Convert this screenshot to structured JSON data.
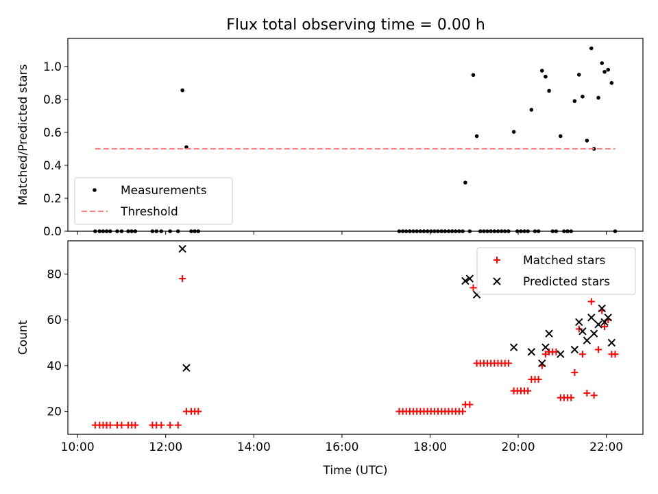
{
  "title": "Flux total observing time = 0.00 h",
  "chart_data": [
    {
      "type": "scatter",
      "ylabel": "Matched/Predicted stars",
      "xlabel": "",
      "xlim": [
        9.78,
        22.83
      ],
      "ylim": [
        0.0,
        1.17
      ],
      "xticks": [
        10,
        12,
        14,
        16,
        18,
        20,
        22
      ],
      "xtick_labels": [
        "",
        "",
        "",
        "",
        "",
        "",
        ""
      ],
      "yticks": [
        0.0,
        0.2,
        0.4,
        0.6,
        0.8,
        1.0
      ],
      "ytick_labels": [
        "0.0",
        "0.2",
        "0.4",
        "0.6",
        "0.8",
        "1.0"
      ],
      "legend_position": "lower-left",
      "series": [
        {
          "name": "Measurements",
          "marker": "dot",
          "color": "#000000",
          "x": [
            10.4,
            10.5,
            10.58,
            10.66,
            10.74,
            10.9,
            11.0,
            11.15,
            11.23,
            11.31,
            11.7,
            11.79,
            11.9,
            12.1,
            12.28,
            12.38,
            12.47,
            12.58,
            12.66,
            12.74,
            17.3,
            17.38,
            17.46,
            17.54,
            17.62,
            17.7,
            17.78,
            17.86,
            17.94,
            18.02,
            18.1,
            18.18,
            18.26,
            18.34,
            18.42,
            18.5,
            18.58,
            18.66,
            18.74,
            18.8,
            18.9,
            18.98,
            19.06,
            19.14,
            19.22,
            19.3,
            19.38,
            19.46,
            19.54,
            19.62,
            19.7,
            19.78,
            19.9,
            19.98,
            20.06,
            20.14,
            20.22,
            20.3,
            20.38,
            20.46,
            20.54,
            20.62,
            20.7,
            20.78,
            20.86,
            20.96,
            21.04,
            21.12,
            21.2,
            21.28,
            21.38,
            21.46,
            21.56,
            21.66,
            21.72,
            21.82,
            21.9,
            21.96,
            22.04,
            22.12,
            22.2
          ],
          "y": [
            0.0,
            0.0,
            0.0,
            0.0,
            0.0,
            0.0,
            0.0,
            0.0,
            0.0,
            0.0,
            0.0,
            0.0,
            0.0,
            0.0,
            0.0,
            0.855,
            0.51,
            0.0,
            0.0,
            0.0,
            0.0,
            0.0,
            0.0,
            0.0,
            0.0,
            0.0,
            0.0,
            0.0,
            0.0,
            0.0,
            0.0,
            0.0,
            0.0,
            0.0,
            0.0,
            0.0,
            0.0,
            0.0,
            0.0,
            0.295,
            0.0,
            0.948,
            0.577,
            0.0,
            0.0,
            0.0,
            0.0,
            0.0,
            0.0,
            0.0,
            0.0,
            0.0,
            0.603,
            0.0,
            0.0,
            0.0,
            0.0,
            0.737,
            0.0,
            0.0,
            0.974,
            0.938,
            0.852,
            0.0,
            0.0,
            0.577,
            0.0,
            0.0,
            0.0,
            0.79,
            0.95,
            0.817,
            0.55,
            1.11,
            0.5,
            0.81,
            1.02,
            0.967,
            0.98,
            0.9,
            0.0
          ]
        },
        {
          "name": "Threshold",
          "marker": "dashed-line",
          "color": "#ff7f7f",
          "x": [
            10.4,
            22.2
          ],
          "y": [
            0.5,
            0.5
          ]
        }
      ]
    },
    {
      "type": "scatter",
      "ylabel": "Count",
      "xlabel": "Time (UTC)",
      "xlim": [
        9.78,
        22.83
      ],
      "ylim": [
        10.0,
        94.5
      ],
      "xticks": [
        10,
        12,
        14,
        16,
        18,
        20,
        22
      ],
      "xtick_labels": [
        "10:00",
        "12:00",
        "14:00",
        "16:00",
        "18:00",
        "20:00",
        "22:00"
      ],
      "yticks": [
        20,
        40,
        60,
        80
      ],
      "ytick_labels": [
        "20",
        "40",
        "60",
        "80"
      ],
      "legend_position": "upper-right",
      "series": [
        {
          "name": "Matched stars",
          "marker": "plus",
          "color": "#ff0000",
          "x": [
            10.4,
            10.5,
            10.58,
            10.66,
            10.74,
            10.9,
            11.0,
            11.15,
            11.23,
            11.31,
            11.7,
            11.79,
            11.9,
            12.1,
            12.28,
            12.38,
            12.47,
            12.58,
            12.66,
            12.74,
            17.3,
            17.38,
            17.46,
            17.54,
            17.62,
            17.7,
            17.78,
            17.86,
            17.94,
            18.02,
            18.1,
            18.18,
            18.26,
            18.34,
            18.42,
            18.5,
            18.58,
            18.66,
            18.74,
            18.8,
            18.9,
            18.98,
            19.06,
            19.14,
            19.22,
            19.3,
            19.38,
            19.46,
            19.54,
            19.62,
            19.7,
            19.78,
            19.9,
            19.98,
            20.06,
            20.14,
            20.22,
            20.3,
            20.38,
            20.46,
            20.54,
            20.62,
            20.7,
            20.78,
            20.86,
            20.96,
            21.04,
            21.12,
            21.2,
            21.28,
            21.38,
            21.46,
            21.56,
            21.66,
            21.72,
            21.82,
            21.9,
            21.96,
            22.04,
            22.12,
            22.2
          ],
          "y": [
            14,
            14,
            14,
            14,
            14,
            14,
            14,
            14,
            14,
            14,
            14,
            14,
            14,
            14,
            14,
            78,
            20,
            20,
            20,
            20,
            20,
            20,
            20,
            20,
            20,
            20,
            20,
            20,
            20,
            20,
            20,
            20,
            20,
            20,
            20,
            20,
            20,
            20,
            20,
            23,
            23,
            74,
            41,
            41,
            41,
            41,
            41,
            41,
            41,
            41,
            41,
            41,
            29,
            29,
            29,
            29,
            29,
            34,
            34,
            34,
            40,
            45,
            46,
            46,
            46,
            26,
            26,
            26,
            26,
            37,
            56,
            45,
            28,
            68,
            27,
            47,
            64,
            57,
            60,
            45,
            45
          ]
        },
        {
          "name": "Predicted stars",
          "marker": "x",
          "color": "#000000",
          "x": [
            12.38,
            12.47,
            18.8,
            18.9,
            19.06,
            19.9,
            20.3,
            20.54,
            20.62,
            20.7,
            20.96,
            21.28,
            21.38,
            21.46,
            21.56,
            21.66,
            21.72,
            21.82,
            21.9,
            21.96,
            22.04,
            22.12
          ],
          "y": [
            91,
            39,
            77,
            78,
            71,
            48,
            46,
            41,
            48,
            54,
            45,
            47,
            59,
            55,
            51,
            61,
            54,
            58,
            65,
            59,
            61,
            50
          ]
        }
      ]
    }
  ]
}
